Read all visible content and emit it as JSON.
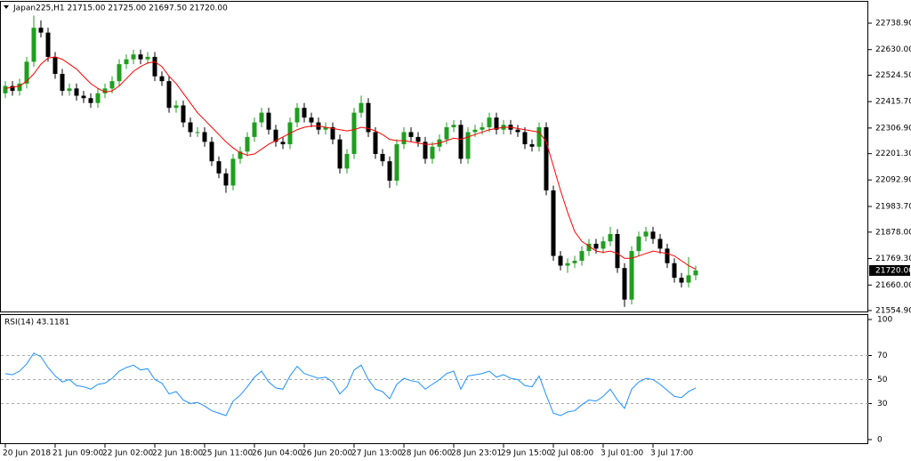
{
  "chart_data": [
    {
      "type": "candlestick",
      "title": "Japan225,H1  21715.00 21725.00 21697.50 21720.00",
      "categories": [
        "20 Jun 2018",
        null,
        null,
        null,
        null,
        null,
        null,
        "21 Jun 09:00",
        null,
        null,
        null,
        null,
        null,
        null,
        "22 Jun 02:00",
        null,
        null,
        null,
        null,
        null,
        null,
        "22 Jun 18:00",
        null,
        null,
        null,
        null,
        null,
        null,
        "25 Jun 11:00",
        null,
        null,
        null,
        null,
        null,
        null,
        "26 Jun 04:00",
        null,
        null,
        null,
        null,
        null,
        null,
        "26 Jun 20:00",
        null,
        null,
        null,
        null,
        null,
        null,
        "27 Jun 13:00",
        null,
        null,
        null,
        null,
        null,
        null,
        "28 Jun 06:00",
        null,
        null,
        null,
        null,
        null,
        null,
        "28 Jun 23:01",
        null,
        null,
        null,
        null,
        null,
        null,
        "29 Jun 15:00",
        null,
        null,
        null,
        null,
        null,
        null,
        "2 Jul 08:00",
        null,
        null,
        null,
        null,
        null,
        null,
        "3 Jul 01:00",
        null,
        null,
        null,
        null,
        null,
        null,
        "3 Jul 17:00",
        null,
        null,
        null,
        null,
        null,
        null
      ],
      "open": [
        22450,
        22480,
        22460,
        22490,
        22580,
        22720,
        22700,
        22600,
        22530,
        22460,
        22470,
        22440,
        22430,
        22410,
        22450,
        22470,
        22500,
        22570,
        22590,
        22610,
        22590,
        22600,
        22520,
        22500,
        22390,
        22400,
        22330,
        22290,
        22290,
        22250,
        22170,
        22120,
        22070,
        22180,
        22210,
        22270,
        22330,
        22370,
        22300,
        22250,
        22240,
        22330,
        22390,
        22350,
        22330,
        22300,
        22310,
        22260,
        22140,
        22200,
        22370,
        22410,
        22290,
        22200,
        22170,
        22090,
        22240,
        22290,
        22270,
        22250,
        22180,
        22230,
        22260,
        22310,
        22320,
        22180,
        22290,
        22300,
        22310,
        22350,
        22300,
        22320,
        22300,
        22290,
        22240,
        22230,
        22310,
        22050,
        21780,
        21740,
        21750,
        21760,
        21800,
        21830,
        21810,
        21840,
        21870,
        21730,
        21600,
        21800,
        21860,
        21880,
        21850,
        21810,
        21750,
        21690,
        21670,
        21700
      ],
      "high": [
        22500,
        22500,
        22510,
        22600,
        22770,
        22750,
        22720,
        22620,
        22550,
        22490,
        22490,
        22460,
        22450,
        22470,
        22490,
        22520,
        22590,
        22610,
        22630,
        22630,
        22620,
        22620,
        22540,
        22520,
        22420,
        22420,
        22350,
        22310,
        22310,
        22270,
        22190,
        22140,
        22200,
        22230,
        22290,
        22350,
        22390,
        22390,
        22320,
        22270,
        22350,
        22410,
        22410,
        22370,
        22350,
        22330,
        22330,
        22280,
        22220,
        22390,
        22440,
        22430,
        22310,
        22220,
        22190,
        22260,
        22310,
        22310,
        22290,
        22270,
        22250,
        22280,
        22330,
        22340,
        22340,
        22310,
        22320,
        22330,
        22370,
        22370,
        22340,
        22340,
        22320,
        22310,
        22260,
        22330,
        22330,
        22070,
        21800,
        21770,
        21780,
        21820,
        21850,
        21850,
        21860,
        21900,
        21890,
        21750,
        21820,
        21880,
        21900,
        21900,
        21870,
        21830,
        21770,
        21710,
        21775,
        21740
      ],
      "low": [
        22430,
        22440,
        22440,
        22470,
        22560,
        22680,
        22580,
        22510,
        22440,
        22440,
        22420,
        22410,
        22390,
        22390,
        22430,
        22450,
        22480,
        22550,
        22570,
        22570,
        22570,
        22500,
        22480,
        22370,
        22370,
        22310,
        22270,
        22270,
        22230,
        22150,
        22100,
        22040,
        22050,
        22160,
        22190,
        22250,
        22310,
        22280,
        22230,
        22220,
        22220,
        22310,
        22330,
        22310,
        22280,
        22280,
        22240,
        22120,
        22120,
        22180,
        22350,
        22270,
        22180,
        22150,
        22060,
        22070,
        22220,
        22250,
        22230,
        22160,
        22160,
        22210,
        22240,
        22290,
        22160,
        22160,
        22270,
        22280,
        22290,
        22280,
        22280,
        22280,
        22270,
        22220,
        22210,
        22210,
        22030,
        21760,
        21720,
        21710,
        21730,
        21740,
        21780,
        21790,
        21790,
        21820,
        21710,
        21570,
        21580,
        21780,
        21840,
        21830,
        21790,
        21730,
        21670,
        21650,
        21650,
        21680
      ],
      "close": [
        22480,
        22460,
        22490,
        22580,
        22720,
        22700,
        22600,
        22530,
        22460,
        22470,
        22440,
        22430,
        22410,
        22450,
        22470,
        22500,
        22570,
        22590,
        22610,
        22590,
        22600,
        22520,
        22500,
        22390,
        22400,
        22330,
        22290,
        22290,
        22250,
        22170,
        22120,
        22070,
        22180,
        22210,
        22270,
        22330,
        22370,
        22300,
        22250,
        22240,
        22330,
        22390,
        22350,
        22330,
        22300,
        22310,
        22260,
        22140,
        22200,
        22370,
        22410,
        22290,
        22200,
        22170,
        22090,
        22240,
        22290,
        22270,
        22250,
        22180,
        22230,
        22260,
        22310,
        22320,
        22180,
        22290,
        22300,
        22310,
        22350,
        22300,
        22320,
        22300,
        22290,
        22240,
        22230,
        22310,
        22050,
        21780,
        21740,
        21750,
        21760,
        21800,
        21830,
        21810,
        21840,
        21870,
        21730,
        21600,
        21800,
        21860,
        21880,
        21850,
        21810,
        21750,
        21690,
        21670,
        21700,
        21720
      ],
      "up_color": "#1f9e1f",
      "down_color": "#000000",
      "series": [
        {
          "color": "#ff0000",
          "values": [
            22470,
            22475,
            22480,
            22500,
            22530,
            22570,
            22595,
            22600,
            22590,
            22570,
            22550,
            22520,
            22490,
            22470,
            22455,
            22460,
            22480,
            22510,
            22540,
            22560,
            22575,
            22580,
            22560,
            22520,
            22490,
            22450,
            22410,
            22370,
            22340,
            22310,
            22280,
            22250,
            22225,
            22205,
            22195,
            22200,
            22220,
            22240,
            22255,
            22270,
            22285,
            22300,
            22310,
            22315,
            22315,
            22310,
            22305,
            22300,
            22295,
            22300,
            22310,
            22305,
            22295,
            22280,
            22260,
            22255,
            22255,
            22250,
            22245,
            22240,
            22240,
            22245,
            22255,
            22265,
            22260,
            22270,
            22280,
            22290,
            22300,
            22305,
            22310,
            22310,
            22305,
            22300,
            22295,
            22290,
            22250,
            22150,
            22050,
            21960,
            21880,
            21840,
            21820,
            21800,
            21795,
            21800,
            21790,
            21770,
            21770,
            21780,
            21790,
            21800,
            21795,
            21790,
            21780,
            21760,
            21740,
            21725
          ]
        }
      ],
      "last_price": {
        "value": 21720,
        "label": "21720.00"
      },
      "ylim": [
        21551,
        22827
      ],
      "yticks": [
        {
          "value": 21554.9,
          "label": "21554.90"
        },
        {
          "value": 21660,
          "label": "21660.00"
        },
        {
          "value": 21769.3,
          "label": "21769.30"
        },
        {
          "value": 21878,
          "label": "21878.00"
        },
        {
          "value": 21983.7,
          "label": "21983.70"
        },
        {
          "value": 22092.9,
          "label": "22092.90"
        },
        {
          "value": 22201.3,
          "label": "22201.30"
        },
        {
          "value": 22306.9,
          "label": "22306.90"
        },
        {
          "value": 22415.7,
          "label": "22415.70"
        },
        {
          "value": 22524.5,
          "label": "22524.50"
        },
        {
          "value": 22630,
          "label": "22630.00"
        },
        {
          "value": 22738.9,
          "label": "22738.90"
        }
      ]
    },
    {
      "type": "line",
      "title": "RSI(14) 43.1181",
      "series": [
        {
          "color": "#1e90ff",
          "values": [
            55,
            54,
            57,
            63,
            72,
            69,
            60,
            53,
            48,
            50,
            45,
            44,
            42,
            46,
            47,
            51,
            57,
            60,
            62,
            58,
            59,
            50,
            47,
            38,
            40,
            33,
            30,
            31,
            28,
            24,
            22,
            20,
            32,
            37,
            44,
            52,
            57,
            48,
            43,
            42,
            53,
            61,
            55,
            53,
            51,
            52,
            48,
            38,
            44,
            58,
            62,
            50,
            42,
            40,
            34,
            46,
            51,
            49,
            48,
            42,
            46,
            50,
            55,
            57,
            42,
            53,
            54,
            55,
            57,
            52,
            54,
            51,
            50,
            45,
            44,
            53,
            37,
            22,
            20,
            23,
            24,
            29,
            33,
            32,
            36,
            42,
            33,
            26,
            42,
            48,
            51,
            50,
            46,
            41,
            36,
            35,
            40,
            43
          ]
        }
      ],
      "ylim": [
        -3,
        103.7
      ],
      "yticks": [
        0,
        30,
        50,
        70,
        100
      ],
      "levels": [
        30,
        50,
        70
      ]
    }
  ]
}
